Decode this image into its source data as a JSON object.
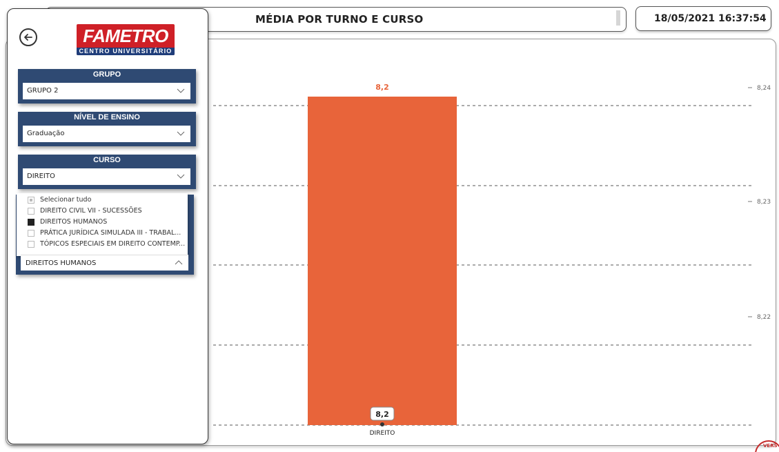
{
  "header": {
    "title": "MÉDIA POR TURNO E CURSO",
    "datetime": "18/05/2021 16:37:54"
  },
  "logo": {
    "name": "FAMETRO",
    "subtitle": "CENTRO UNIVERSITÁRIO"
  },
  "filters": {
    "grupo": {
      "label": "GRUPO",
      "value": "GRUPO 2"
    },
    "nivel": {
      "label": "NÍVEL DE ENSINO",
      "value": "Graduação"
    },
    "curso": {
      "label": "CURSO",
      "value": "DIREITO"
    },
    "disciplina": {
      "items": [
        {
          "label": "Selecionar tudo",
          "state": "partial"
        },
        {
          "label": "DIREITO CIVIL VII - SUCESSÕES",
          "state": "unchecked"
        },
        {
          "label": "DIREITOS HUMANOS",
          "state": "checked"
        },
        {
          "label": "PRÁTICA JURÍDICA SIMULADA III - TRABAL...",
          "state": "unchecked"
        },
        {
          "label": "TÓPICOS ESPECIAIS EM DIREITO CONTEMP...",
          "state": "unchecked"
        }
      ],
      "selected": "DIREITOS HUMANOS"
    }
  },
  "chart_data": {
    "type": "bar",
    "categories": [
      "DIREITO"
    ],
    "values": [
      8.2
    ],
    "top_label": "8,2",
    "bottom_label": "8,2",
    "y_ticks": [
      "8,24",
      "8,23",
      "8,22"
    ],
    "grid": true,
    "colors": {
      "bar": "#e8643a",
      "top_label": "#e8643a"
    }
  },
  "stamp": {
    "text": "VERS"
  }
}
